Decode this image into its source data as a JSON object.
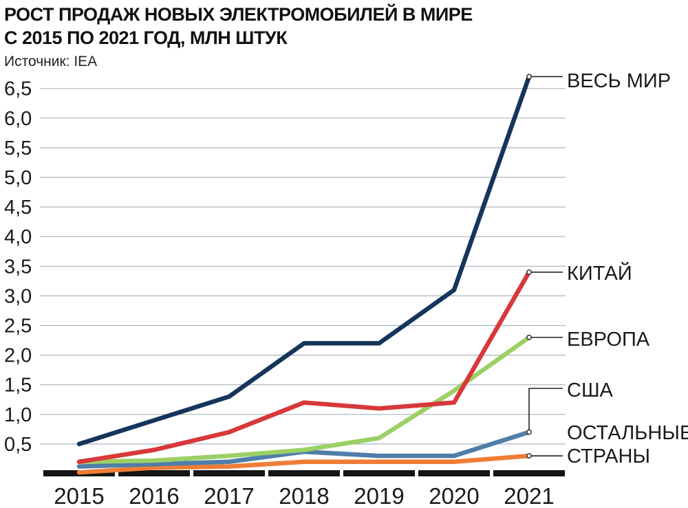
{
  "title_line1": "РОСТ ПРОДАЖ НОВЫХ ЭЛЕКТРОМОБИЛЕЙ В МИРЕ",
  "title_line2": "С 2015 ПО 2021 ГОД, МЛН ШТУК",
  "source": "Источник: IEA",
  "chart_data": {
    "type": "line",
    "title": "РОСТ ПРОДАЖ НОВЫХ ЭЛЕКТРОМОБИЛЕЙ В МИРЕ С 2015 ПО 2021 ГОД, МЛН ШТУК",
    "xlabel": "",
    "ylabel": "",
    "x": [
      "2015",
      "2016",
      "2017",
      "2018",
      "2019",
      "2020",
      "2021"
    ],
    "ylim": [
      0,
      6.5
    ],
    "yticks": [
      "0,5",
      "1,0",
      "1,5",
      "2,0",
      "2,5",
      "3,0",
      "3,5",
      "4,0",
      "4,5",
      "5,0",
      "5,5",
      "6,0",
      "6,5"
    ],
    "grid": true,
    "legend": "direct labels at right",
    "series": [
      {
        "name": "ВЕСЬ МИР",
        "label_lines": [
          "ВЕСЬ МИР"
        ],
        "color": "#15355c",
        "values": [
          0.5,
          0.9,
          1.3,
          2.2,
          2.2,
          3.1,
          6.7
        ]
      },
      {
        "name": "КИТАЙ",
        "label_lines": [
          "КИТАЙ"
        ],
        "color": "#d8383a",
        "values": [
          0.2,
          0.4,
          0.7,
          1.2,
          1.1,
          1.2,
          3.4
        ]
      },
      {
        "name": "ЕВРОПА",
        "label_lines": [
          "ЕВРОПА"
        ],
        "color": "#9cd066",
        "values": [
          0.2,
          0.22,
          0.3,
          0.4,
          0.6,
          1.4,
          2.3
        ]
      },
      {
        "name": "США",
        "label_lines": [
          "США"
        ],
        "color": "#4f7ea8",
        "values": [
          0.12,
          0.16,
          0.2,
          0.37,
          0.3,
          0.3,
          0.7
        ]
      },
      {
        "name": "ОСТАЛЬНЫЕ СТРАНЫ",
        "label_lines": [
          "ОСТАЛЬНЫЕ",
          "СТРАНЫ"
        ],
        "color": "#ef7d36",
        "values": [
          0.02,
          0.1,
          0.12,
          0.2,
          0.2,
          0.2,
          0.3
        ]
      }
    ]
  }
}
